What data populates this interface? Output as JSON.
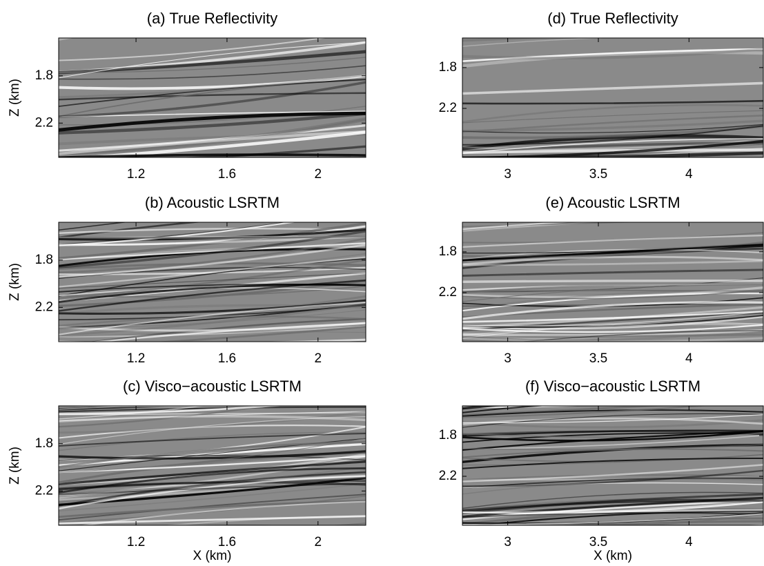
{
  "chart_data": [
    {
      "type": "image",
      "title": "(a) True Reflectivity",
      "ylabel": "Z (km)",
      "xlim": [
        0.86,
        2.21
      ],
      "xticks": [
        1.2,
        1.6,
        2
      ],
      "ylim": [
        1.48,
        2.49
      ],
      "yticks": [
        1.8,
        2.2
      ],
      "y_reversed": true
    },
    {
      "type": "image",
      "title": "(b) Acoustic LSRTM",
      "ylabel": "Z (km)",
      "xlim": [
        0.86,
        2.21
      ],
      "xticks": [
        1.2,
        1.6,
        2
      ],
      "ylim": [
        1.48,
        2.49
      ],
      "yticks": [
        1.8,
        2.2
      ],
      "y_reversed": true
    },
    {
      "type": "image",
      "title": "(c) Visco−acoustic LSRTM",
      "xlabel": "X (km)",
      "ylabel": "Z (km)",
      "xlim": [
        0.86,
        2.21
      ],
      "xticks": [
        1.2,
        1.6,
        2
      ],
      "ylim": [
        1.48,
        2.49
      ],
      "yticks": [
        1.8,
        2.2
      ],
      "y_reversed": true
    },
    {
      "type": "image",
      "title": "(d) True Reflectivity",
      "xlim": [
        2.75,
        4.41
      ],
      "xticks": [
        3,
        3.5,
        4
      ],
      "ylim": [
        1.51,
        2.68
      ],
      "yticks": [
        1.8,
        2.2
      ],
      "y_reversed": true
    },
    {
      "type": "image",
      "title": "(e) Acoustic LSRTM",
      "xlim": [
        2.75,
        4.41
      ],
      "xticks": [
        3,
        3.5,
        4
      ],
      "ylim": [
        1.51,
        2.68
      ],
      "yticks": [
        1.8,
        2.2
      ],
      "y_reversed": true
    },
    {
      "type": "image",
      "title": "(f) Visco−acoustic LSRTM",
      "xlabel": "X (km)",
      "xlim": [
        2.75,
        4.41
      ],
      "xticks": [
        3,
        3.5,
        4
      ],
      "ylim": [
        1.51,
        2.68
      ],
      "yticks": [
        1.8,
        2.2
      ],
      "y_reversed": true
    }
  ]
}
